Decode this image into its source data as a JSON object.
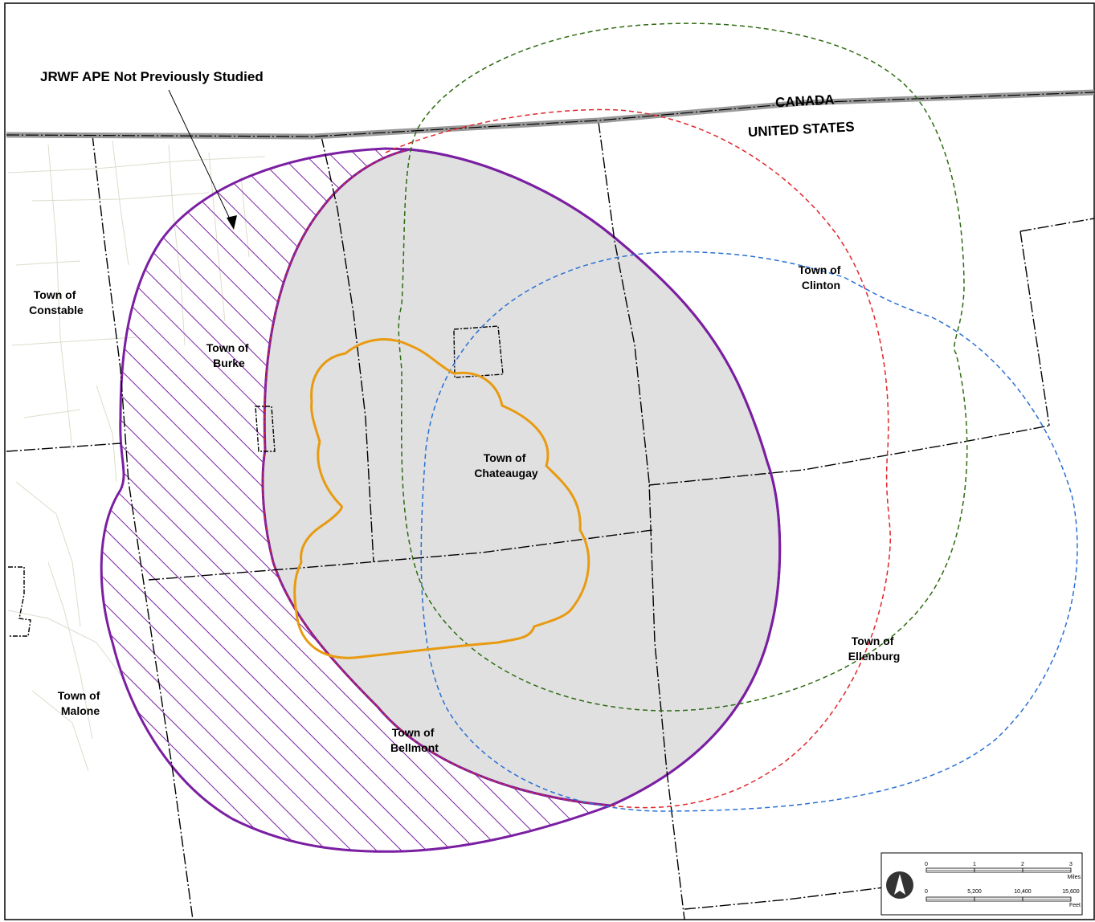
{
  "callout": {
    "text": "JRWF APE Not Previously Studied"
  },
  "border": {
    "north": "CANADA",
    "south": "UNITED STATES"
  },
  "towns": [
    {
      "line1": "Town of",
      "line2": "Constable"
    },
    {
      "line1": "Town of",
      "line2": "Burke"
    },
    {
      "line1": "Town of",
      "line2": "Chateaugay"
    },
    {
      "line1": "Town of",
      "line2": "Clinton"
    },
    {
      "line1": "Town of",
      "line2": "Ellenburg"
    },
    {
      "line1": "Town of",
      "line2": "Malone"
    },
    {
      "line1": "Town of",
      "line2": "Bellmont"
    }
  ],
  "scalebar": {
    "miles": {
      "ticks": [
        "0",
        "1",
        "2",
        "3"
      ],
      "unit": "Miles"
    },
    "feet": {
      "ticks": [
        "0",
        "5,200",
        "10,400",
        "15,600"
      ],
      "unit": "Feet"
    }
  },
  "colors": {
    "ape_outline": "#7b1fa2",
    "study_area_fill": "#e0e0e0",
    "project_outline": "#e89a10",
    "circle_red": "#e0262b",
    "circle_green": "#2e6b12",
    "circle_blue": "#2a6fd6",
    "border": "#9a9a9a"
  }
}
